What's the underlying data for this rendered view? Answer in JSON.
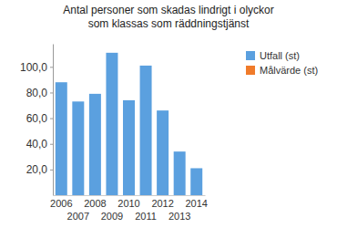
{
  "chart_data": {
    "type": "bar",
    "title": "Antal personer som skadas lindrigt i olyckor som klassas som räddningstjänst",
    "categories": [
      "2006",
      "2007",
      "2008",
      "2009",
      "2010",
      "2011",
      "2012",
      "2013",
      "2014"
    ],
    "series": [
      {
        "name": "Utfall (st)",
        "color": "#5ba0df",
        "values": [
          88,
          73,
          79,
          111,
          74,
          101,
          66,
          34,
          21
        ]
      },
      {
        "name": "Målvärde (st)",
        "color": "#f07b2a",
        "values": [
          null,
          null,
          null,
          null,
          null,
          null,
          null,
          null,
          null
        ]
      }
    ],
    "ylim": [
      0,
      118
    ],
    "yticks": [
      {
        "value": 20,
        "label": "20,0"
      },
      {
        "value": 40,
        "label": "40,0"
      },
      {
        "value": 60,
        "label": "60,0"
      },
      {
        "value": 80,
        "label": "80,0"
      },
      {
        "value": 100,
        "label": "100,0"
      }
    ],
    "grid": false,
    "legend": "right"
  }
}
